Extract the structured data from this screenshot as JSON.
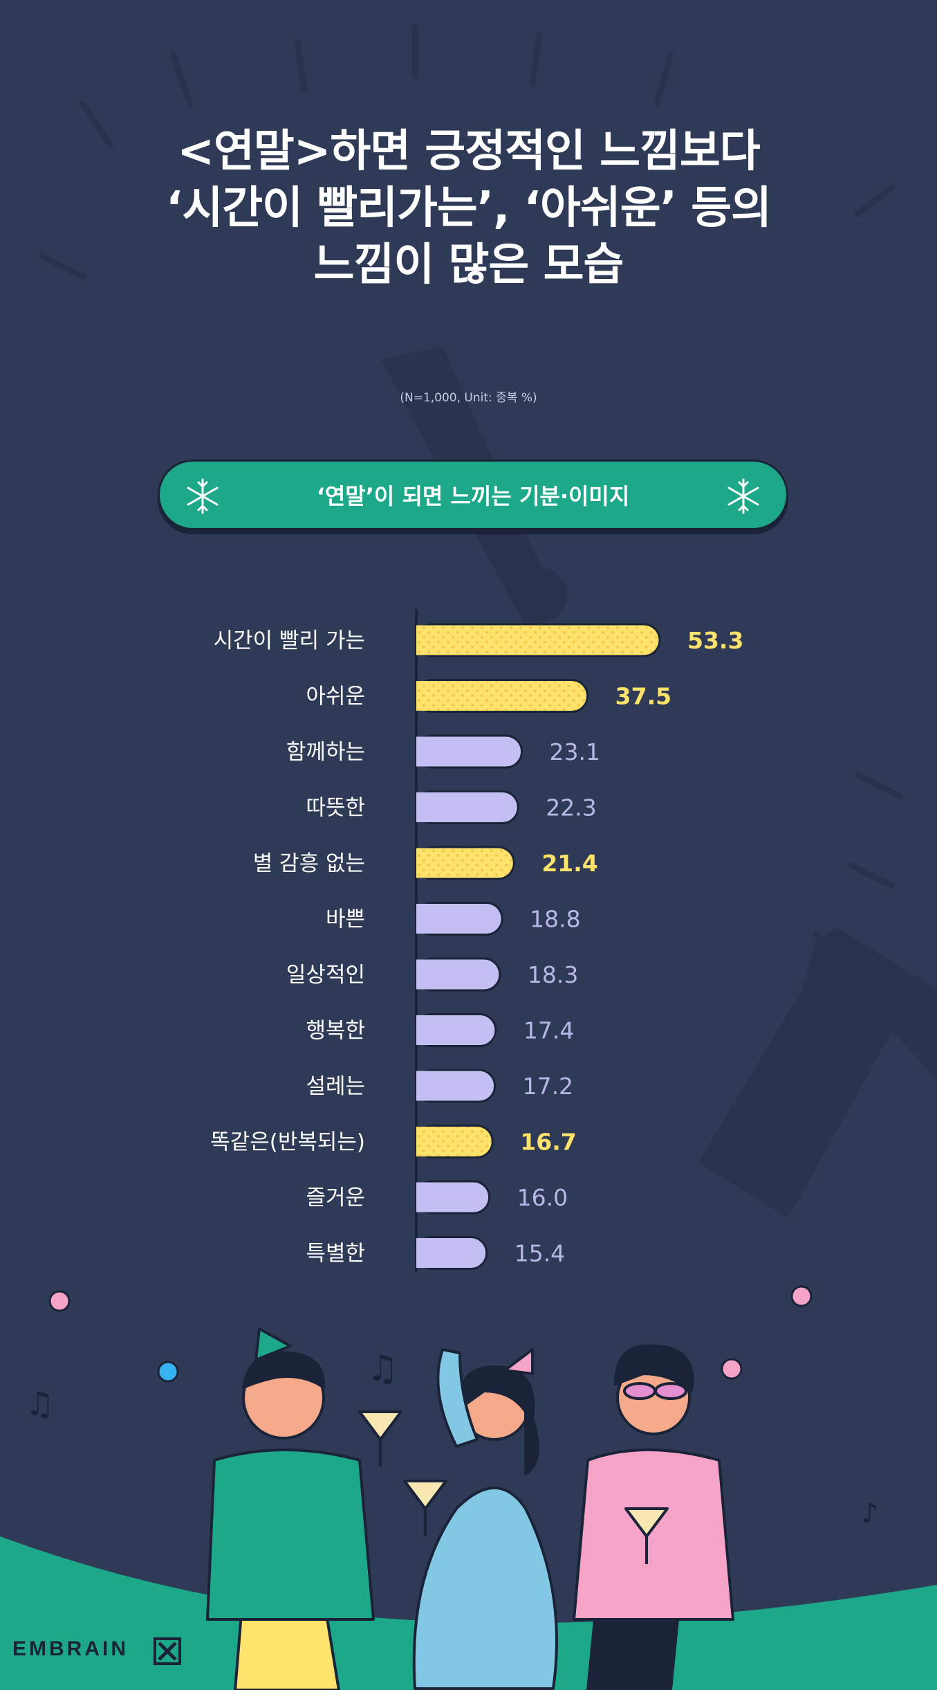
{
  "title_lines": [
    "<연말>하면 긍정적인 느낌보다",
    "‘시간이 빨리가는’, ‘아쉬운’ 등의",
    "느낌이 많은 모습"
  ],
  "note": "(N=1,000, Unit: 중복 %)",
  "banner": {
    "label": "‘연말’이 되면 느끼는 기분·이미지",
    "icon": "snowflake-icon"
  },
  "brand": {
    "name": "EMBRAIN",
    "icon": "embrain-logo-icon"
  },
  "colors": {
    "background": "#2f3a57",
    "highlight_bar": "#fde36b",
    "highlight_dot": "#f2c94c",
    "normal_bar": "#c3bff2",
    "highlight_label": "#fde36b",
    "normal_label": "#b9b6e8",
    "banner": "#1ea88a",
    "ground": "#1ea88a"
  },
  "chart_data": {
    "type": "bar",
    "orientation": "horizontal",
    "categories": [
      "시간이 빨리 가는",
      "아쉬운",
      "함께하는",
      "따뜻한",
      "별 감흥 없는",
      "바쁜",
      "일상적인",
      "행복한",
      "설레는",
      "똑같은(반복되는)",
      "즐거운",
      "특별한"
    ],
    "values": [
      53.3,
      37.5,
      23.1,
      22.3,
      21.4,
      18.8,
      18.3,
      17.4,
      17.2,
      16.7,
      16.0,
      15.4
    ],
    "labels": [
      "53.3",
      "37.5",
      "23.1",
      "22.3",
      "21.4",
      "18.8",
      "18.3",
      "17.4",
      "17.2",
      "16.7",
      "16.0",
      "15.4"
    ],
    "highlighted": [
      true,
      true,
      false,
      false,
      true,
      false,
      false,
      false,
      false,
      true,
      false,
      false
    ],
    "xlim": [
      0,
      53.3
    ],
    "grid": false
  }
}
